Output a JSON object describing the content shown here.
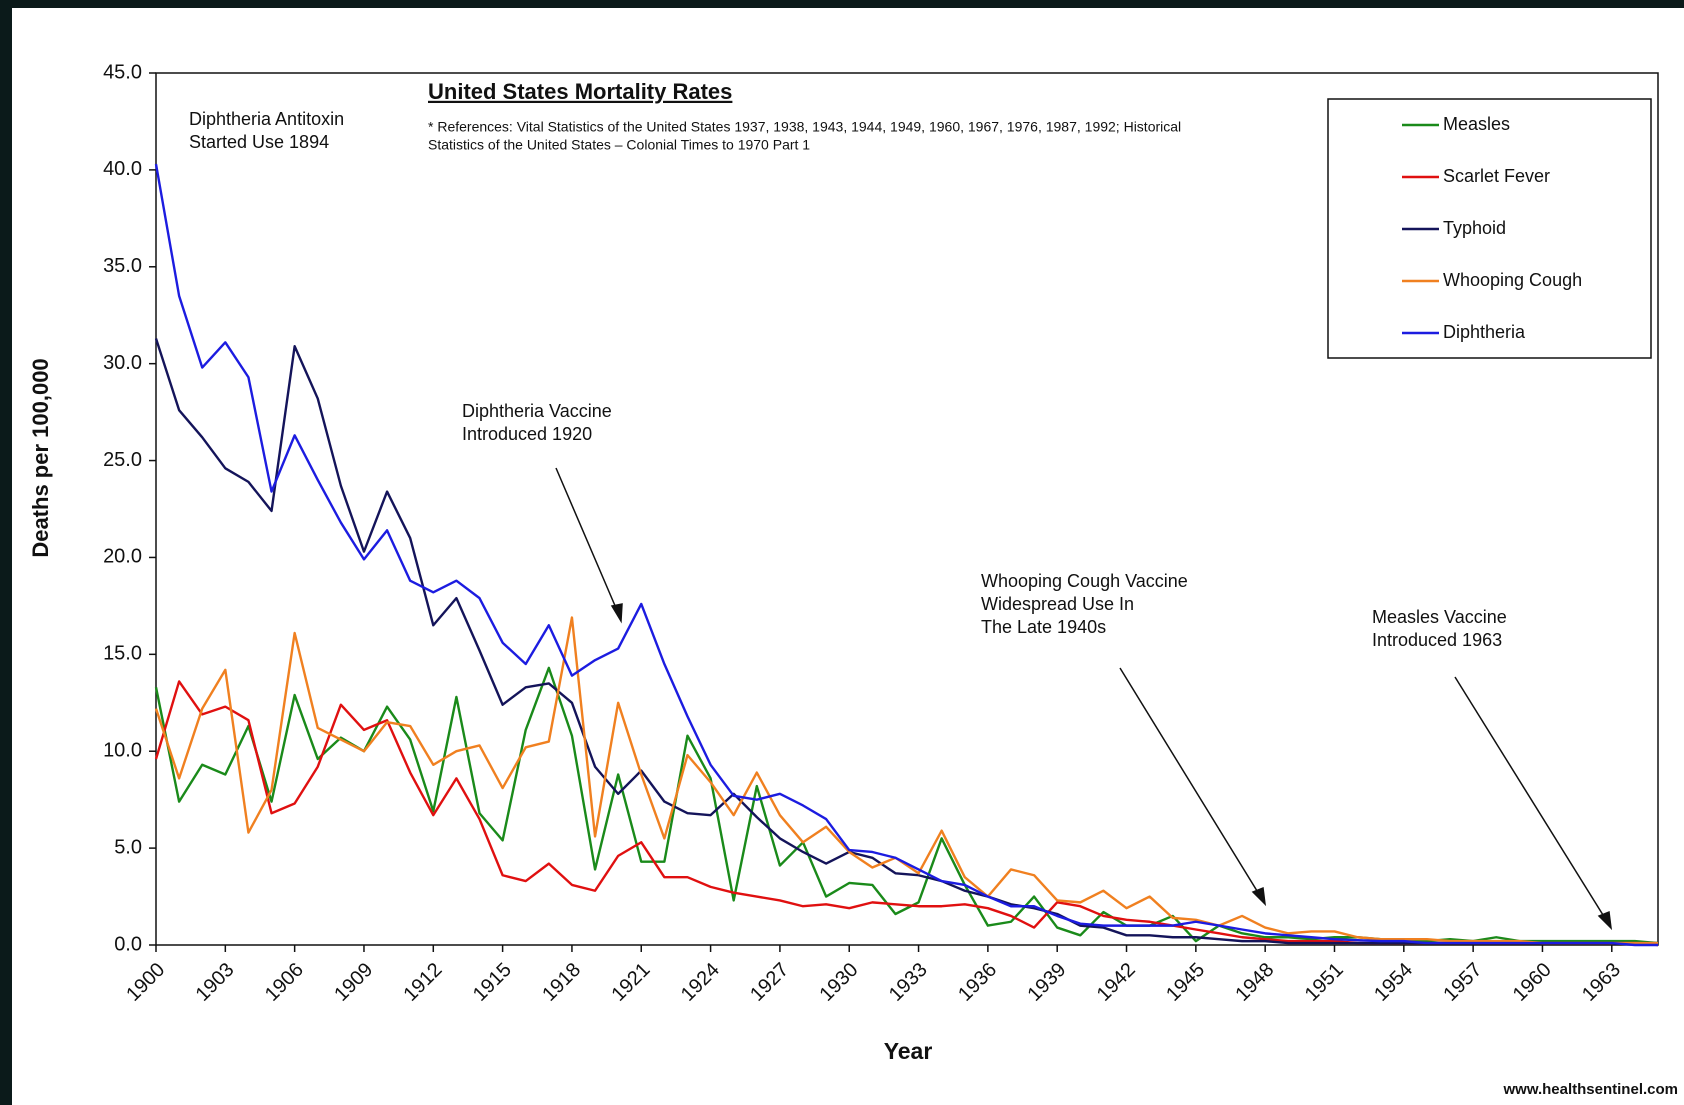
{
  "chart_data": {
    "type": "line",
    "title": "United States Mortality Rates",
    "subtitle": [
      "* References: Vital Statistics of the United States 1937, 1938, 1943, 1944, 1949, 1960, 1967, 1976, 1987, 1992; Historical",
      "Statistics of the United States – Colonial Times to 1970 Part 1"
    ],
    "x_label": "Year",
    "y_label": "Deaths per 100,000",
    "source": "www.healthsentinel.com",
    "annotations": [
      [
        "Diphtheria Antitoxin",
        "Started Use 1894"
      ],
      [
        "Diphtheria Vaccine",
        "Introduced 1920"
      ],
      [
        "Whooping Cough Vaccine",
        "Widespread Use In",
        "The Late 1940s"
      ],
      [
        "Measles Vaccine",
        "Introduced 1963"
      ]
    ],
    "x": [
      1900,
      1901,
      1902,
      1903,
      1904,
      1905,
      1906,
      1907,
      1908,
      1909,
      1910,
      1911,
      1912,
      1913,
      1914,
      1915,
      1916,
      1917,
      1918,
      1919,
      1920,
      1921,
      1922,
      1923,
      1924,
      1925,
      1926,
      1927,
      1928,
      1929,
      1930,
      1931,
      1932,
      1933,
      1934,
      1935,
      1936,
      1937,
      1938,
      1939,
      1940,
      1941,
      1942,
      1943,
      1944,
      1945,
      1946,
      1947,
      1948,
      1949,
      1950,
      1951,
      1952,
      1953,
      1954,
      1955,
      1956,
      1957,
      1958,
      1959,
      1960,
      1961,
      1962,
      1963,
      1964,
      1965
    ],
    "xlim": [
      1900,
      1965
    ],
    "xticks": [
      1900,
      1903,
      1906,
      1909,
      1912,
      1915,
      1918,
      1921,
      1924,
      1927,
      1930,
      1933,
      1936,
      1939,
      1942,
      1945,
      1948,
      1951,
      1954,
      1957,
      1960,
      1963
    ],
    "ylim": [
      0,
      45
    ],
    "yticks": [
      {
        "value": 0,
        "label": "0.0"
      },
      {
        "value": 5,
        "label": "5.0"
      },
      {
        "value": 10,
        "label": "10.0"
      },
      {
        "value": 15,
        "label": "15.0"
      },
      {
        "value": 20,
        "label": "20.0"
      },
      {
        "value": 25,
        "label": "25.0"
      },
      {
        "value": 30,
        "label": "30.0"
      },
      {
        "value": 35,
        "label": "35.0"
      },
      {
        "value": 40,
        "label": "40.0"
      },
      {
        "value": 45,
        "label": "45.0"
      }
    ],
    "grid": false,
    "series": [
      {
        "name": "Measles",
        "color": "#1a8a1a",
        "values": [
          13.3,
          7.4,
          9.3,
          8.8,
          11.3,
          7.4,
          12.9,
          9.6,
          10.7,
          10.0,
          12.3,
          10.6,
          6.9,
          12.8,
          6.8,
          5.4,
          11.1,
          14.3,
          10.8,
          3.9,
          8.8,
          4.3,
          4.3,
          10.8,
          8.6,
          2.3,
          8.2,
          4.1,
          5.3,
          2.5,
          3.2,
          3.1,
          1.6,
          2.2,
          5.5,
          3.1,
          1.0,
          1.2,
          2.5,
          0.9,
          0.5,
          1.7,
          1.0,
          1.0,
          1.5,
          0.2,
          1.0,
          0.6,
          0.4,
          0.4,
          0.3,
          0.4,
          0.4,
          0.3,
          0.3,
          0.2,
          0.3,
          0.2,
          0.4,
          0.2,
          0.2,
          0.2,
          0.2,
          0.2,
          0.2,
          0.1
        ]
      },
      {
        "name": "Scarlet Fever",
        "color": "#e01010",
        "values": [
          9.6,
          13.6,
          11.9,
          12.3,
          11.6,
          6.8,
          7.3,
          9.2,
          12.4,
          11.1,
          11.6,
          8.9,
          6.7,
          8.6,
          6.5,
          3.6,
          3.3,
          4.2,
          3.1,
          2.8,
          4.6,
          5.3,
          3.5,
          3.5,
          3.0,
          2.7,
          2.5,
          2.3,
          2.0,
          2.1,
          1.9,
          2.2,
          2.1,
          2.0,
          2.0,
          2.1,
          1.9,
          1.5,
          0.9,
          2.2,
          2.0,
          1.5,
          1.3,
          1.2,
          1.0,
          0.8,
          0.6,
          0.4,
          0.3,
          0.2,
          0.2,
          0.2,
          0.1,
          0.1,
          0.1,
          0.1,
          0.1,
          0.1,
          0.1,
          0.1,
          0.1,
          0.1,
          0.1,
          0.1,
          0.1,
          0.0
        ]
      },
      {
        "name": "Typhoid",
        "color": "#14145a",
        "values": [
          31.3,
          27.6,
          26.2,
          24.6,
          23.9,
          22.4,
          30.9,
          28.2,
          23.7,
          20.3,
          23.4,
          21.0,
          16.5,
          17.9,
          15.2,
          12.4,
          13.3,
          13.5,
          12.5,
          9.2,
          7.8,
          9.0,
          7.4,
          6.8,
          6.7,
          7.8,
          6.6,
          5.5,
          4.8,
          4.2,
          4.8,
          4.5,
          3.7,
          3.6,
          3.3,
          2.8,
          2.5,
          2.1,
          1.9,
          1.6,
          1.0,
          0.9,
          0.5,
          0.5,
          0.4,
          0.4,
          0.3,
          0.2,
          0.2,
          0.1,
          0.1,
          0.1,
          0.1,
          0.1,
          0.1,
          0.1,
          0.1,
          0.1,
          0.1,
          0.1,
          0.1,
          0.1,
          0.1,
          0.1,
          0.1,
          0.1
        ]
      },
      {
        "name": "Whooping Cough",
        "color": "#f08020",
        "values": [
          12.2,
          8.6,
          12.2,
          14.2,
          5.8,
          8.0,
          16.1,
          11.2,
          10.6,
          10.0,
          11.5,
          11.3,
          9.3,
          10.0,
          10.3,
          8.1,
          10.2,
          10.5,
          16.9,
          5.6,
          12.5,
          8.8,
          5.5,
          9.8,
          8.4,
          6.7,
          8.9,
          6.7,
          5.3,
          6.1,
          4.8,
          4.0,
          4.5,
          3.7,
          5.9,
          3.5,
          2.5,
          3.9,
          3.6,
          2.3,
          2.2,
          2.8,
          1.9,
          2.5,
          1.4,
          1.3,
          1.0,
          1.5,
          0.9,
          0.6,
          0.7,
          0.7,
          0.4,
          0.3,
          0.3,
          0.3,
          0.2,
          0.2,
          0.2,
          0.2,
          0.1,
          0.1,
          0.1,
          0.1,
          0.1,
          0.1
        ]
      },
      {
        "name": "Diphtheria",
        "color": "#1c1ce0",
        "values": [
          40.3,
          33.5,
          29.8,
          31.1,
          29.3,
          23.4,
          26.3,
          24.0,
          21.8,
          19.9,
          21.4,
          18.8,
          18.2,
          18.8,
          17.9,
          15.6,
          14.5,
          16.5,
          13.9,
          14.7,
          15.3,
          17.6,
          14.5,
          11.8,
          9.3,
          7.7,
          7.5,
          7.8,
          7.2,
          6.5,
          4.9,
          4.8,
          4.5,
          3.9,
          3.3,
          3.1,
          2.5,
          2.0,
          2.0,
          1.5,
          1.1,
          1.0,
          1.0,
          1.0,
          1.0,
          1.2,
          1.0,
          0.8,
          0.6,
          0.5,
          0.4,
          0.3,
          0.25,
          0.2,
          0.2,
          0.1,
          0.1,
          0.1,
          0.1,
          0.1,
          0.1,
          0.1,
          0.1,
          0.1,
          0.0,
          0.0
        ]
      }
    ]
  }
}
